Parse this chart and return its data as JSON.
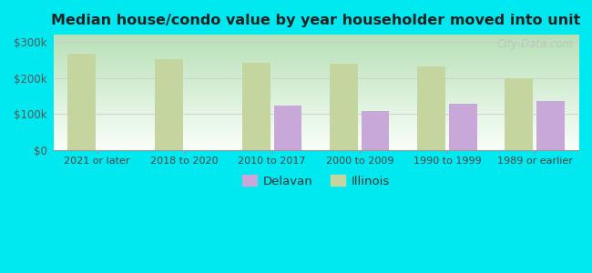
{
  "title": "Median house/condo value by year householder moved into unit",
  "categories": [
    "2021 or later",
    "2018 to 2020",
    "2010 to 2017",
    "2000 to 2009",
    "1990 to 1999",
    "1989 or earlier"
  ],
  "delavan_values": [
    null,
    null,
    122000,
    108000,
    128000,
    135000
  ],
  "illinois_values": [
    268000,
    252000,
    242000,
    240000,
    232000,
    200000
  ],
  "delavan_color": "#c8a8d8",
  "illinois_color": "#c5d5a0",
  "background_outer": "#00e8f0",
  "background_inner_gradient_top": "#b8d8b0",
  "background_inner_gradient_bottom": "#f5fff5",
  "grid_color": "#cccccc",
  "bar_width": 0.32,
  "bar_gap": 0.04,
  "ylim": [
    0,
    320000
  ],
  "yticks": [
    0,
    100000,
    200000,
    300000
  ],
  "legend_delavan": "Delavan",
  "legend_illinois": "Illinois",
  "watermark": "City-Data.com",
  "figsize": [
    6.5,
    3.0
  ],
  "dpi": 100
}
